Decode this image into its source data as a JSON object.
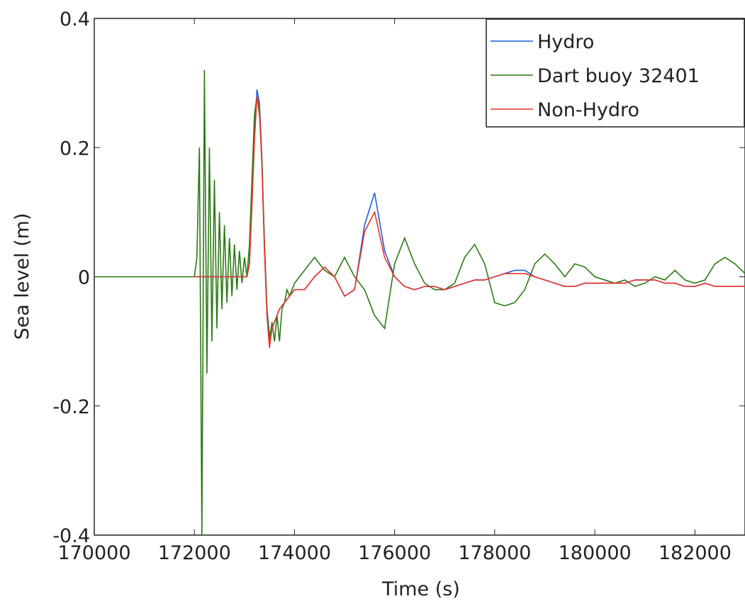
{
  "chart_data": {
    "type": "line",
    "x_label": "Time (s)",
    "y_label": "Sea level (m)",
    "xlim": [
      170000,
      183000
    ],
    "xticks": [
      170000,
      172000,
      174000,
      176000,
      178000,
      180000,
      182000
    ],
    "ylim": [
      -0.4,
      0.4
    ],
    "yticks": [
      -0.4,
      -0.2,
      0,
      0.2,
      0.4
    ],
    "grid": false,
    "legend_position": "upper-right",
    "x": [
      170000,
      172000,
      172050,
      172100,
      172150,
      172200,
      172250,
      172300,
      172350,
      172400,
      172450,
      172500,
      172550,
      172600,
      172650,
      172700,
      172750,
      172800,
      172850,
      172900,
      172950,
      173000,
      173050,
      173100,
      173150,
      173200,
      173250,
      173300,
      173350,
      173400,
      173450,
      173500,
      173550,
      173600,
      173650,
      173700,
      173750,
      173800,
      173850,
      173900,
      173950,
      174000,
      174200,
      174400,
      174600,
      174800,
      175000,
      175200,
      175400,
      175600,
      175800,
      176000,
      176200,
      176400,
      176600,
      176800,
      177000,
      177200,
      177400,
      177600,
      177800,
      178000,
      178200,
      178400,
      178600,
      178800,
      179000,
      179200,
      179400,
      179600,
      179800,
      180000,
      180200,
      180400,
      180600,
      180800,
      181000,
      181200,
      181400,
      181600,
      181800,
      182000,
      182200,
      182400,
      182600,
      182800,
      183000
    ],
    "series": [
      {
        "name": "Hydro",
        "color": "#1f5ee0",
        "values": [
          null,
          0,
          0,
          0,
          0,
          0,
          0,
          0,
          0,
          0,
          0,
          0,
          0,
          0,
          0,
          0,
          0,
          0,
          0,
          0,
          0,
          0,
          0,
          0.02,
          0.12,
          0.22,
          0.29,
          0.27,
          0.18,
          0.05,
          -0.05,
          -0.09,
          -0.08,
          -0.07,
          -0.06,
          -0.05,
          -0.045,
          -0.04,
          -0.035,
          -0.03,
          -0.025,
          -0.02,
          -0.02,
          0,
          0.015,
          0,
          -0.03,
          -0.02,
          0.08,
          0.13,
          0.04,
          0,
          -0.015,
          -0.02,
          -0.015,
          -0.015,
          -0.02,
          -0.015,
          -0.01,
          -0.005,
          -0.005,
          0,
          0.005,
          0.01,
          0.01,
          0,
          -0.005,
          -0.01,
          -0.015,
          -0.015,
          -0.01,
          -0.01,
          -0.01,
          -0.01,
          -0.01,
          -0.005,
          -0.005,
          -0.005,
          -0.01,
          -0.01,
          -0.015,
          -0.015,
          -0.01,
          -0.015,
          -0.015,
          -0.015,
          -0.015
        ]
      },
      {
        "name": "Dart buoy 32401",
        "color": "#2b7a14",
        "values": [
          0,
          0,
          0.03,
          0.2,
          -0.4,
          0.32,
          -0.15,
          0.2,
          -0.1,
          0.15,
          -0.08,
          0.1,
          -0.05,
          0.08,
          -0.04,
          0.06,
          -0.03,
          0.05,
          -0.02,
          0.04,
          -0.01,
          0.03,
          0,
          0.05,
          0.15,
          0.25,
          0.28,
          0.25,
          0.18,
          0.05,
          -0.05,
          -0.1,
          -0.07,
          -0.1,
          -0.06,
          -0.1,
          -0.05,
          -0.04,
          -0.02,
          -0.03,
          -0.02,
          -0.01,
          0.01,
          0.03,
          0.01,
          0,
          0.03,
          0,
          -0.02,
          -0.06,
          -0.08,
          0.02,
          0.06,
          0.02,
          -0.01,
          -0.02,
          -0.02,
          -0.01,
          0.03,
          0.05,
          0.02,
          -0.04,
          -0.045,
          -0.04,
          -0.02,
          0.02,
          0.035,
          0.02,
          0,
          0.02,
          0.015,
          0,
          -0.005,
          -0.01,
          -0.005,
          -0.015,
          -0.01,
          0,
          -0.005,
          0.01,
          -0.005,
          -0.01,
          -0.005,
          0.02,
          0.03,
          0.02,
          0.005
        ]
      },
      {
        "name": "Non-Hydro",
        "color": "#e8352a",
        "values": [
          null,
          0,
          0,
          0,
          0,
          0,
          0,
          0,
          0,
          0,
          0,
          0,
          0,
          0,
          0,
          0,
          0,
          0,
          0,
          0,
          0,
          0,
          0,
          0.02,
          0.11,
          0.21,
          0.28,
          0.26,
          0.17,
          0.04,
          -0.06,
          -0.11,
          -0.08,
          -0.07,
          -0.06,
          -0.05,
          -0.045,
          -0.04,
          -0.035,
          -0.03,
          -0.025,
          -0.02,
          -0.02,
          0,
          0.015,
          0,
          -0.03,
          -0.02,
          0.07,
          0.1,
          0.03,
          0,
          -0.015,
          -0.02,
          -0.015,
          -0.015,
          -0.02,
          -0.015,
          -0.01,
          -0.005,
          -0.005,
          0,
          0.005,
          0.005,
          0.005,
          0,
          -0.005,
          -0.01,
          -0.015,
          -0.015,
          -0.01,
          -0.01,
          -0.01,
          -0.01,
          -0.01,
          -0.005,
          -0.005,
          -0.005,
          -0.01,
          -0.01,
          -0.015,
          -0.015,
          -0.01,
          -0.015,
          -0.015,
          -0.015,
          -0.015
        ]
      }
    ]
  }
}
